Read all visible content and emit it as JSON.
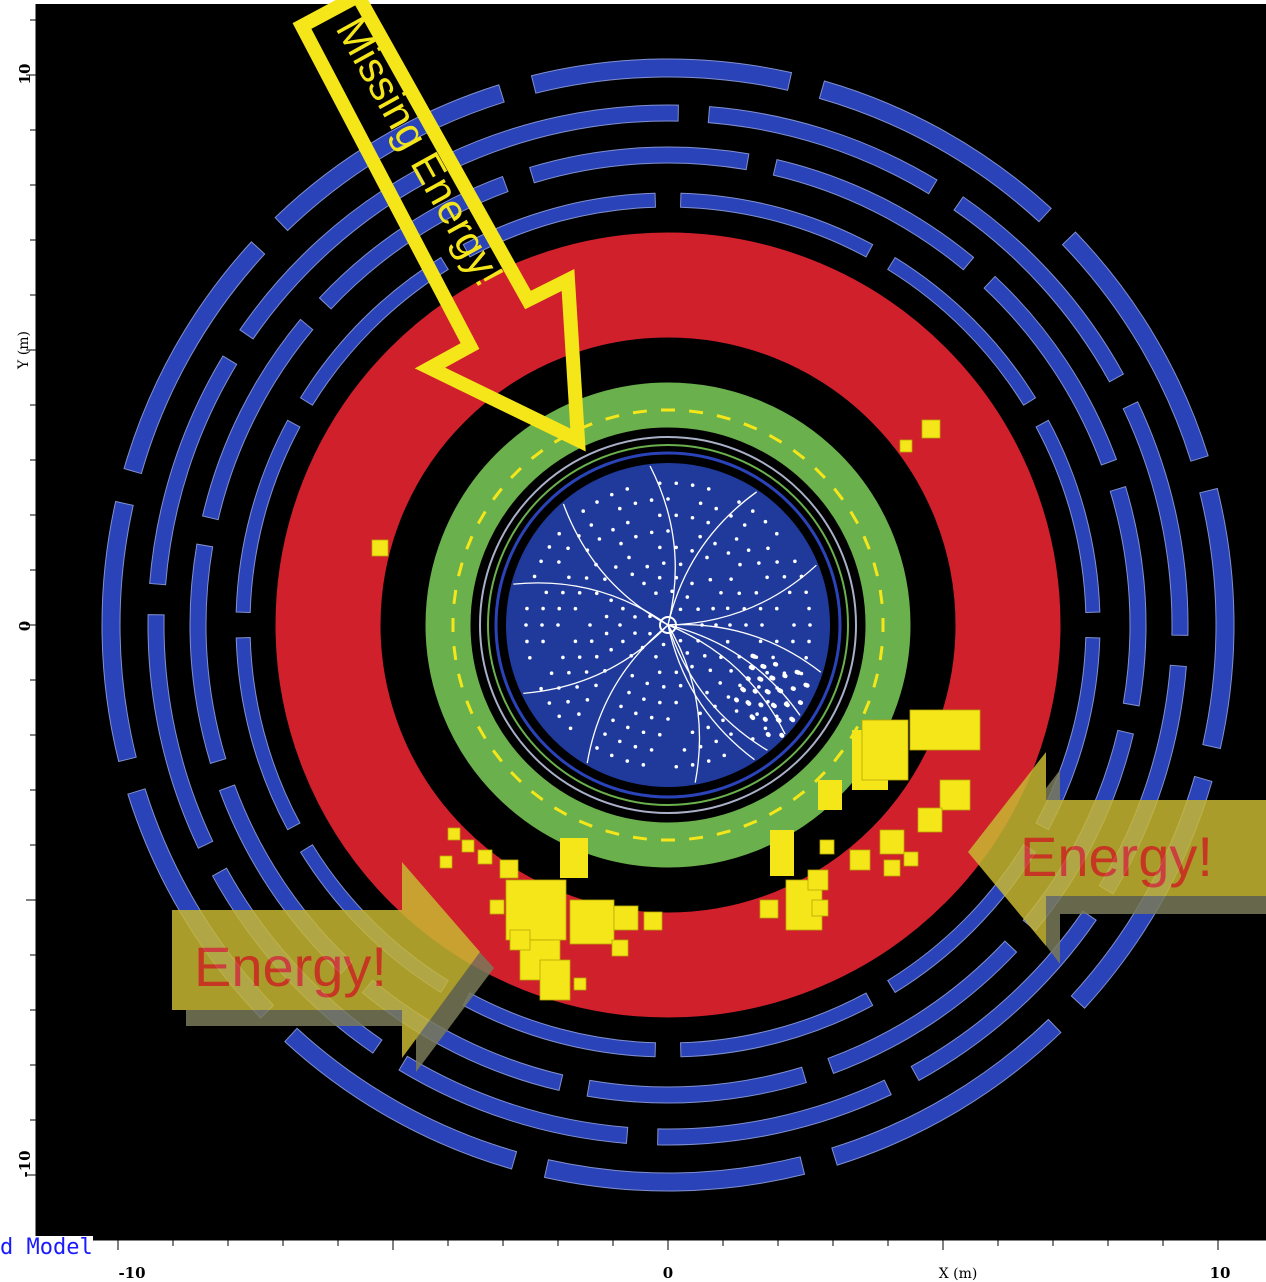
{
  "axes": {
    "x_title": "X (m)",
    "y_title": "Y (m)",
    "x_ticks": [
      "-10",
      "0",
      "10"
    ],
    "y_ticks": [
      "10",
      "0",
      "-10"
    ]
  },
  "callouts": {
    "missing_energy": "Missing Energy!",
    "energy_left": "Energy!",
    "energy_right": "Energy!"
  },
  "caption": "d Model",
  "colors": {
    "background": "#000000",
    "muon_chambers": "#2a43b8",
    "hadronic_calorimeter": "#d0202c",
    "em_calorimeter": "#6ab04c",
    "tracker": "#1f3a9a",
    "energy_deposits": "#f5e61a",
    "missing_energy_arrow": "#f5e61a",
    "energy_arrow": "#c8b832",
    "energy_text": "#e8402a",
    "caption_text": "#1a1aff"
  }
}
